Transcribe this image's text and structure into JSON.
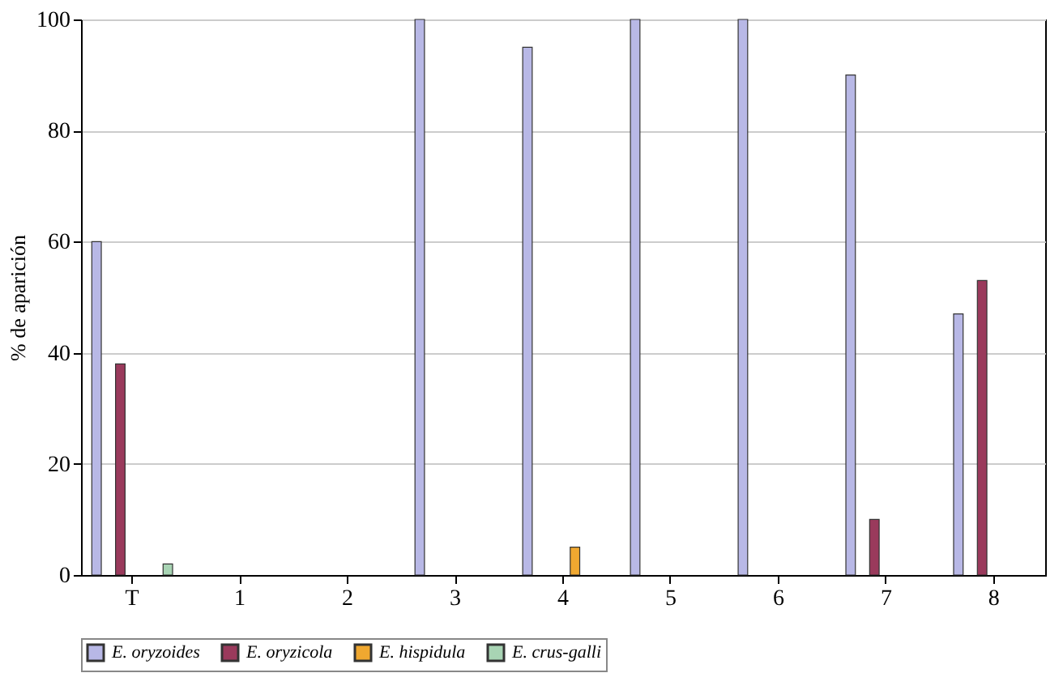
{
  "chart_data": {
    "type": "bar",
    "ylabel": "% de aparición",
    "categories": [
      "T",
      "1",
      "2",
      "3",
      "4",
      "5",
      "6",
      "7",
      "8"
    ],
    "series": [
      {
        "name": "E. oryzoides",
        "color": "#b8b8e6",
        "values": [
          60,
          0,
          0,
          100,
          95,
          100,
          100,
          90,
          47
        ]
      },
      {
        "name": "E. oryzicola",
        "color": "#9a3a5c",
        "values": [
          38,
          0,
          0,
          0,
          0,
          0,
          0,
          10,
          53
        ]
      },
      {
        "name": "E. hispidula",
        "color": "#f0a830",
        "values": [
          0,
          0,
          0,
          0,
          5,
          0,
          0,
          0,
          0
        ]
      },
      {
        "name": "E. crus-galli",
        "color": "#a8d4b4",
        "values": [
          2,
          0,
          0,
          0,
          0,
          0,
          0,
          0,
          0
        ]
      }
    ],
    "ylim": [
      0,
      100
    ],
    "yticks": [
      0,
      20,
      40,
      60,
      80,
      100
    ],
    "grid": "y",
    "legend": "bottom"
  }
}
